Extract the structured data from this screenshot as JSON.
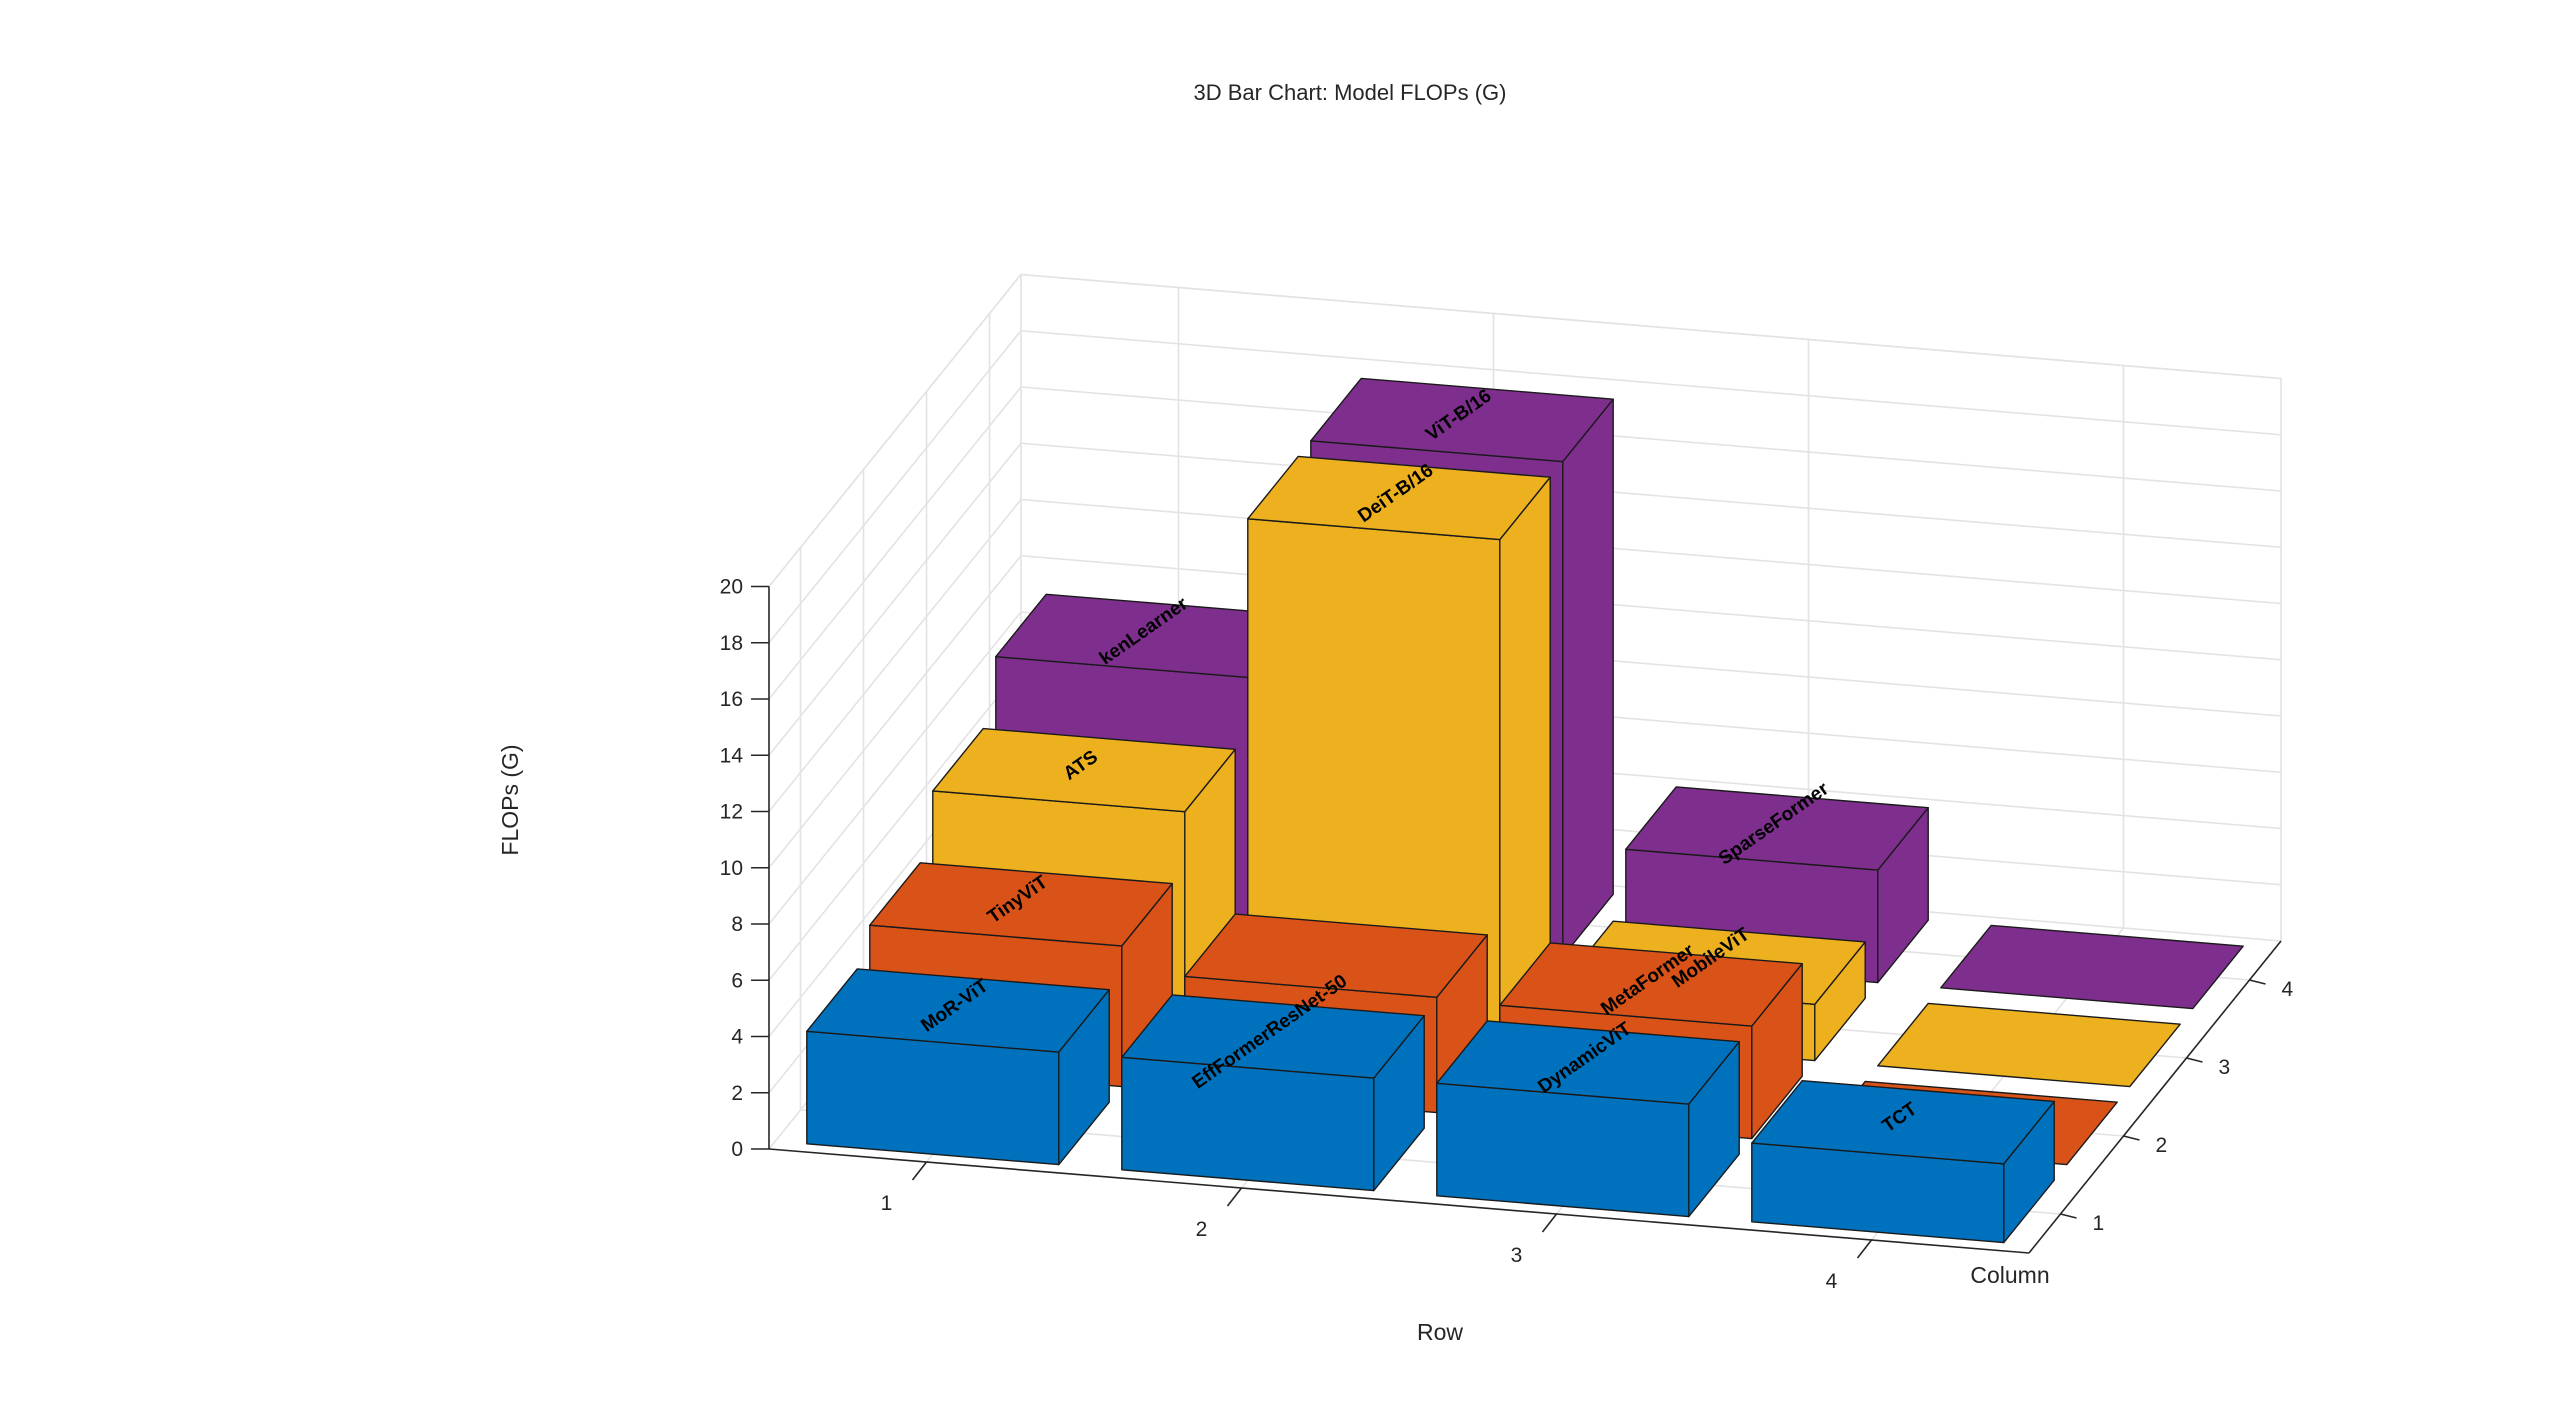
{
  "chart_data": {
    "type": "bar3d",
    "title": "3D Bar Chart: Model FLOPs (G)",
    "xlabel": "Row",
    "ylabel": "Column",
    "zlabel": "FLOPs (G)",
    "rows": [
      1,
      2,
      3,
      4
    ],
    "columns": [
      1,
      2,
      3,
      4
    ],
    "zlim": [
      0,
      20
    ],
    "zticks": [
      0,
      2,
      4,
      6,
      8,
      10,
      12,
      14,
      16,
      18,
      20
    ],
    "grid": true,
    "colors": {
      "1": "#0072BD",
      "2": "#D95319",
      "3": "#EDB120",
      "4": "#7E2F8E"
    },
    "bars": [
      {
        "row": 1,
        "column": 1,
        "value": 4.0,
        "label": "MoR-ViT"
      },
      {
        "row": 1,
        "column": 2,
        "value": 5.0,
        "label": "TinyViT"
      },
      {
        "row": 1,
        "column": 3,
        "value": 7.0,
        "label": "ATS"
      },
      {
        "row": 1,
        "column": 4,
        "value": 9.0,
        "label": "kenLearner"
      },
      {
        "row": 2,
        "column": 1,
        "value": 4.0,
        "label": "EffFormerResNet-50"
      },
      {
        "row": 2,
        "column": 2,
        "value": 4.1,
        "label": ""
      },
      {
        "row": 2,
        "column": 3,
        "value": 17.6,
        "label": "DeiT-B/16"
      },
      {
        "row": 2,
        "column": 4,
        "value": 17.6,
        "label": "ViT-B/16"
      },
      {
        "row": 3,
        "column": 1,
        "value": 4.0,
        "label": "DynamicViT"
      },
      {
        "row": 3,
        "column": 2,
        "value": 4.0,
        "label": "MetaFormer"
      },
      {
        "row": 3,
        "column": 3,
        "value": 2.0,
        "label": "MobileViT"
      },
      {
        "row": 3,
        "column": 4,
        "value": 4.0,
        "label": "SparseFormer"
      },
      {
        "row": 4,
        "column": 1,
        "value": 2.8,
        "label": "TCT"
      },
      {
        "row": 4,
        "column": 2,
        "value": 0,
        "label": ""
      },
      {
        "row": 4,
        "column": 3,
        "value": 0,
        "label": ""
      },
      {
        "row": 4,
        "column": 4,
        "value": 0,
        "label": ""
      }
    ]
  }
}
